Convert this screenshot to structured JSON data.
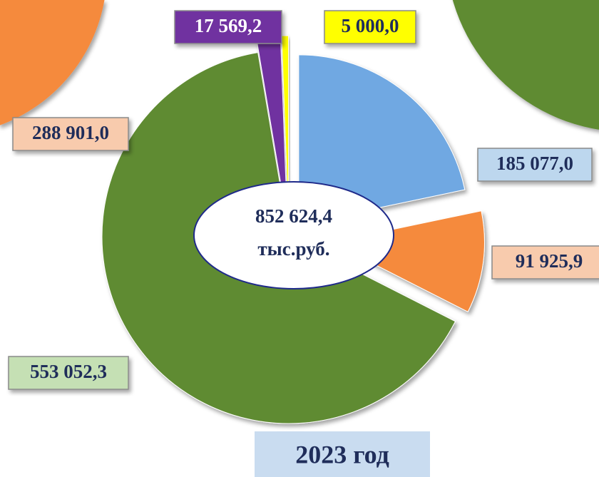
{
  "chart_data": [
    {
      "type": "pie",
      "title": "2023 год",
      "total_label": "852 624,4",
      "unit": "тыс.руб.",
      "values": [
        185077.0,
        91925.9,
        553052.3,
        17569.2,
        5000.0
      ],
      "value_labels": [
        "185 077,0",
        "91 925,9",
        "553 052,3",
        "17 569,2",
        "5 000,0"
      ],
      "colors": [
        "#6fa8e2",
        "#f58a3c",
        "#5f8b33",
        "#7030a0",
        "#ffff00"
      ]
    },
    {
      "type": "pie-fragment",
      "values": [
        288901.0
      ],
      "value_labels": [
        "288 901,0"
      ],
      "colors": [
        "#f58a3c"
      ]
    }
  ]
}
